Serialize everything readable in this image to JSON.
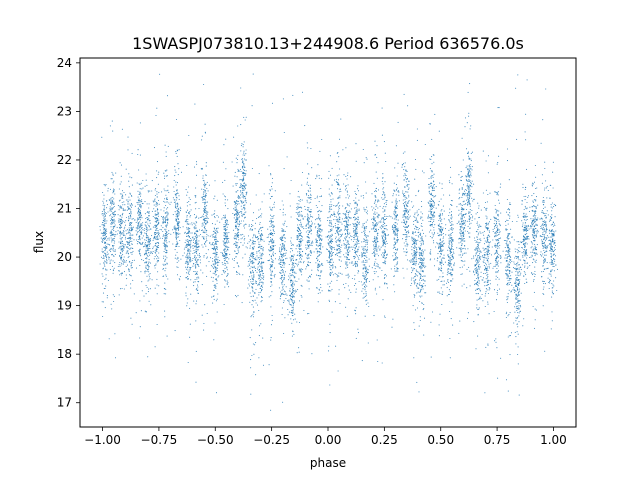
{
  "chart_data": {
    "type": "scatter",
    "title": "1SWASPJ073810.13+244908.6 Period 636576.0s",
    "xlabel": "phase",
    "ylabel": "flux",
    "xlim": [
      -1.1,
      1.1
    ],
    "ylim": [
      16.5,
      24.1
    ],
    "xticks": [
      -1.0,
      -0.75,
      -0.5,
      -0.25,
      0.0,
      0.25,
      0.5,
      0.75,
      1.0
    ],
    "xtick_labels": [
      "−1.00",
      "−0.75",
      "−0.50",
      "−0.25",
      "0.00",
      "0.25",
      "0.50",
      "0.75",
      "1.00"
    ],
    "yticks": [
      17,
      18,
      19,
      20,
      21,
      22,
      23,
      24
    ],
    "ytick_labels": [
      "17",
      "18",
      "19",
      "20",
      "21",
      "22",
      "23",
      "24"
    ],
    "grid": false,
    "legend": "none",
    "point_color": "#1f77b4",
    "series": [
      {
        "clusters": [
          {
            "x": -0.99,
            "y": 20.3
          },
          {
            "x": -0.955,
            "y": 20.6
          },
          {
            "x": -0.915,
            "y": 20.5
          },
          {
            "x": -0.88,
            "y": 20.5
          },
          {
            "x": -0.835,
            "y": 20.7
          },
          {
            "x": -0.8,
            "y": 20.3
          },
          {
            "x": -0.76,
            "y": 20.6
          },
          {
            "x": -0.72,
            "y": 20.6
          },
          {
            "x": -0.67,
            "y": 20.9
          },
          {
            "x": -0.62,
            "y": 20.2
          },
          {
            "x": -0.585,
            "y": 20.1
          },
          {
            "x": -0.545,
            "y": 21.0
          },
          {
            "x": -0.5,
            "y": 20.1
          },
          {
            "x": -0.455,
            "y": 20.3
          },
          {
            "x": -0.405,
            "y": 20.7
          },
          {
            "x": -0.375,
            "y": 21.4
          },
          {
            "x": -0.335,
            "y": 19.9
          },
          {
            "x": -0.3,
            "y": 20.0
          },
          {
            "x": -0.25,
            "y": 20.3
          },
          {
            "x": -0.2,
            "y": 20.0
          },
          {
            "x": -0.16,
            "y": 19.4
          },
          {
            "x": -0.125,
            "y": 20.4
          },
          {
            "x": -0.085,
            "y": 20.6
          },
          {
            "x": -0.04,
            "y": 20.3
          },
          {
            "x": 0.01,
            "y": 20.3
          },
          {
            "x": 0.045,
            "y": 20.6
          },
          {
            "x": 0.085,
            "y": 20.5
          },
          {
            "x": 0.125,
            "y": 20.4
          },
          {
            "x": 0.165,
            "y": 20.0
          },
          {
            "x": 0.21,
            "y": 20.5
          },
          {
            "x": 0.25,
            "y": 20.5
          },
          {
            "x": 0.3,
            "y": 20.6
          },
          {
            "x": 0.345,
            "y": 20.9
          },
          {
            "x": 0.385,
            "y": 20.1
          },
          {
            "x": 0.415,
            "y": 19.9
          },
          {
            "x": 0.46,
            "y": 21.0
          },
          {
            "x": 0.5,
            "y": 20.2
          },
          {
            "x": 0.545,
            "y": 20.2
          },
          {
            "x": 0.595,
            "y": 20.7
          },
          {
            "x": 0.625,
            "y": 21.3
          },
          {
            "x": 0.665,
            "y": 19.9
          },
          {
            "x": 0.705,
            "y": 20.1
          },
          {
            "x": 0.75,
            "y": 20.3
          },
          {
            "x": 0.8,
            "y": 20.0
          },
          {
            "x": 0.84,
            "y": 19.4
          },
          {
            "x": 0.875,
            "y": 20.4
          },
          {
            "x": 0.915,
            "y": 20.6
          },
          {
            "x": 0.96,
            "y": 20.4
          },
          {
            "x": 0.995,
            "y": 20.2
          }
        ]
      }
    ]
  }
}
